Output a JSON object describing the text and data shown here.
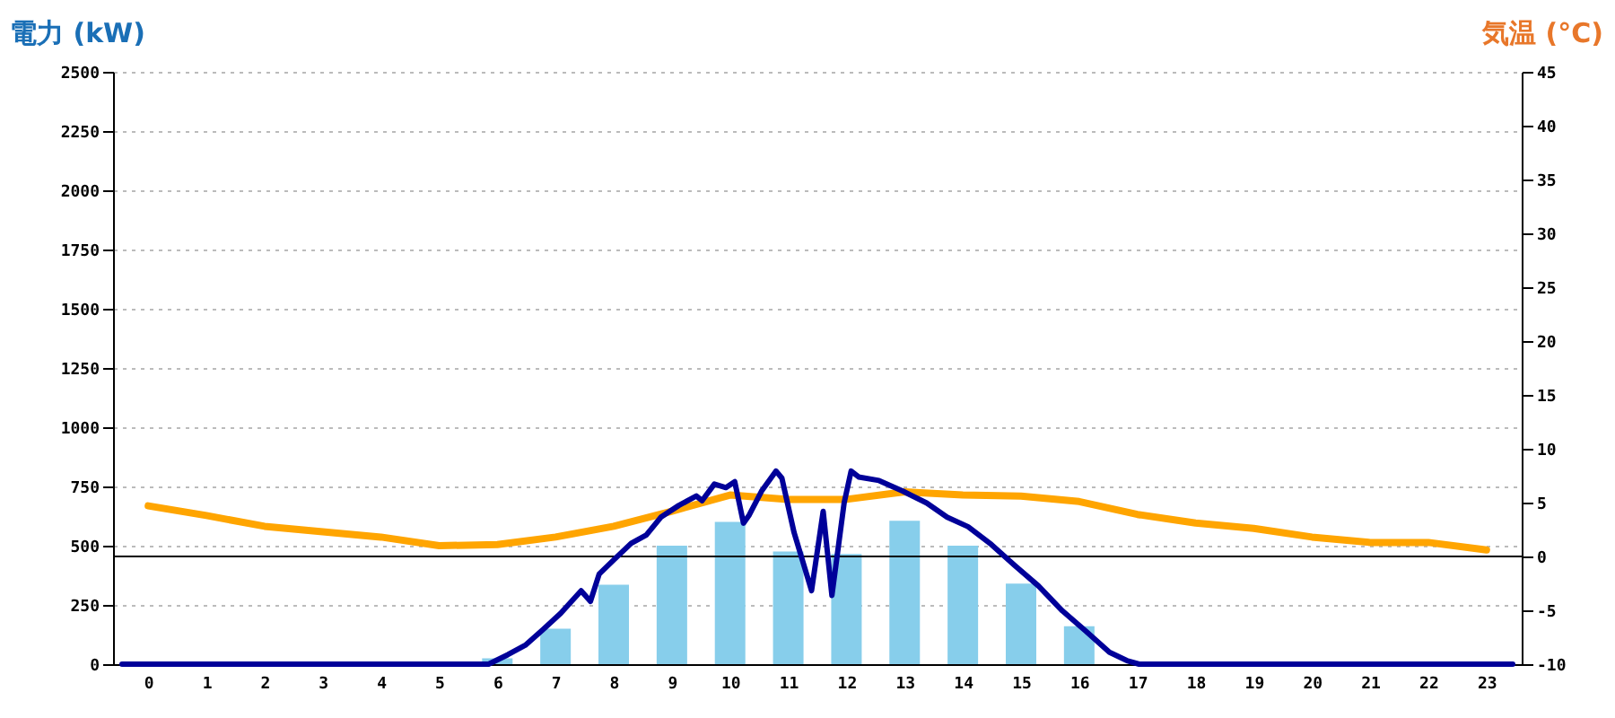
{
  "chart_data": {
    "type": "bar",
    "ylabel": "電力 (kW)",
    "y2label": "気温 (°C)",
    "x": [
      0,
      1,
      2,
      3,
      4,
      5,
      6,
      7,
      8,
      9,
      10,
      11,
      12,
      13,
      14,
      15,
      16,
      17,
      18,
      19,
      20,
      21,
      22,
      23
    ],
    "xlim": [
      -0.45,
      23.45
    ],
    "xticks": [
      0,
      1,
      2,
      3,
      4,
      5,
      6,
      7,
      8,
      9,
      10,
      11,
      12,
      13,
      14,
      15,
      16,
      17,
      18,
      19,
      20,
      21,
      22,
      23
    ],
    "ylim": [
      0,
      2500
    ],
    "yticks": [
      0,
      250,
      500,
      750,
      1000,
      1250,
      1500,
      1750,
      2000,
      2250,
      2500
    ],
    "y2lim": [
      -10,
      45
    ],
    "y2ticks": [
      -10,
      -5,
      0,
      5,
      10,
      15,
      20,
      25,
      30,
      35,
      40,
      45
    ],
    "grid": "y",
    "series": [
      {
        "color": "#87ceeb",
        "values": [
          0,
          0,
          0,
          0,
          0,
          0,
          25,
          150,
          335,
          500,
          600,
          475,
          465,
          605,
          500,
          340,
          160,
          0,
          0,
          0,
          0,
          0,
          0,
          0
        ]
      },
      {
        "type": "line",
        "color": "#000099",
        "x": [
          -0.45,
          5.85,
          6.18,
          6.48,
          6.78,
          7.09,
          7.44,
          7.6,
          7.75,
          8.0,
          8.3,
          8.56,
          8.81,
          9.12,
          9.42,
          9.52,
          9.73,
          9.93,
          10.08,
          10.23,
          10.33,
          10.54,
          10.79,
          10.89,
          11.1,
          11.4,
          11.6,
          11.75,
          11.96,
          12.08,
          12.21,
          12.56,
          12.97,
          13.38,
          13.73,
          14.09,
          14.49,
          14.9,
          15.3,
          15.71,
          16.11,
          16.52,
          16.82,
          17.03,
          23.45
        ],
        "values": [
          0,
          0,
          40,
          80,
          145,
          215,
          310,
          265,
          380,
          440,
          510,
          545,
          620,
          670,
          710,
          690,
          760,
          745,
          770,
          595,
          630,
          730,
          815,
          785,
          555,
          310,
          645,
          290,
          680,
          815,
          790,
          775,
          730,
          680,
          620,
          580,
          505,
          415,
          330,
          225,
          140,
          50,
          15,
          0,
          0
        ]
      },
      {
        "type": "line",
        "axis": "y2",
        "color": "#ffa500",
        "values": [
          4.7,
          3.8,
          2.8,
          2.3,
          1.8,
          1.0,
          1.1,
          1.8,
          2.8,
          4.2,
          5.7,
          5.3,
          5.3,
          6.0,
          5.7,
          5.6,
          5.1,
          3.9,
          3.1,
          2.6,
          1.8,
          1.3,
          1.3,
          0.6
        ]
      }
    ],
    "ref_lines": [
      {
        "axis": "y2",
        "value": 0,
        "color": "#000000"
      }
    ]
  }
}
